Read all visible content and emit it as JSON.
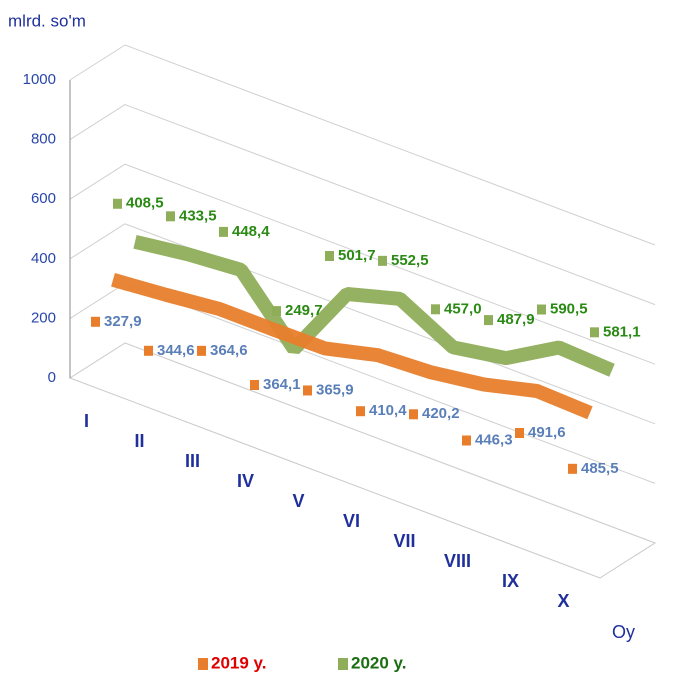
{
  "chart_data": {
    "type": "line3d",
    "y_axis_title": "mlrd. so'm",
    "x_axis_title": "Oy",
    "categories": [
      "I",
      "II",
      "III",
      "IV",
      "V",
      "VI",
      "VII",
      "VIII",
      "IX",
      "X"
    ],
    "ylim": [
      0,
      1000
    ],
    "yticks": [
      0,
      200,
      400,
      600,
      800,
      1000
    ],
    "grid": true,
    "legend": "bottom",
    "series": [
      {
        "name": "2019 y.",
        "color": "#e87e2c",
        "label_color": "#5a7fb8",
        "legend_text_color": "#e00000",
        "values": [
          327.9,
          344.6,
          364.6,
          364.1,
          365.9,
          410.4,
          420.2,
          446.3,
          491.6,
          485.5
        ],
        "value_labels": [
          "327,9",
          "344,6",
          "364,6",
          "364,1",
          "365,9",
          "410,4",
          "420,2",
          "446,3",
          "491,6",
          "485,5"
        ]
      },
      {
        "name": "2020 y.",
        "color": "#8fae5a",
        "label_color": "#2a8a14",
        "legend_text_color": "#1b6e12",
        "values": [
          408.5,
          433.5,
          448.4,
          249.7,
          501.7,
          552.5,
          457.0,
          487.9,
          590.5,
          581.1
        ],
        "value_labels": [
          "408,5",
          "433,5",
          "448,4",
          "249,7",
          "501,7",
          "552,5",
          "457,0",
          "487,9",
          "590,5",
          "581,1"
        ]
      }
    ]
  }
}
